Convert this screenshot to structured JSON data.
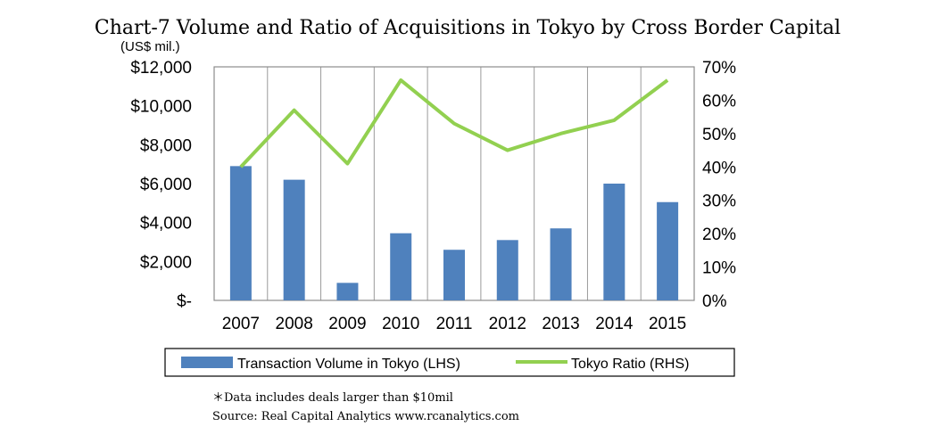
{
  "chart_data": {
    "type": "bar",
    "title": "Chart-7 Volume and Ratio of Acquisitions in Tokyo by Cross Border Capital",
    "y_unit_label": "(US$ mil.)",
    "categories": [
      "2007",
      "2008",
      "2009",
      "2010",
      "2011",
      "2012",
      "2013",
      "2014",
      "2015"
    ],
    "series": [
      {
        "name": "Transaction Volume in Tokyo (LHS)",
        "type": "bar",
        "axis": "left",
        "color": "#4f81bd",
        "values": [
          6900,
          6200,
          900,
          3450,
          2600,
          3100,
          3700,
          6000,
          5050
        ]
      },
      {
        "name": "Tokyo Ratio (RHS)",
        "type": "line",
        "axis": "right",
        "color": "#92d050",
        "values": [
          40,
          57,
          41,
          66,
          53,
          45,
          50,
          54,
          66
        ]
      }
    ],
    "left_axis": {
      "ylim": [
        0,
        12000
      ],
      "ticks": [
        0,
        2000,
        4000,
        6000,
        8000,
        10000,
        12000
      ],
      "tick_labels": [
        "$-",
        "$2,000",
        "$4,000",
        "$6,000",
        "$8,000",
        "$10,000",
        "$12,000"
      ]
    },
    "right_axis": {
      "ylim": [
        0,
        70
      ],
      "ticks": [
        0,
        10,
        20,
        30,
        40,
        50,
        60,
        70
      ],
      "tick_labels": [
        "0%",
        "10%",
        "20%",
        "30%",
        "40%",
        "50%",
        "60%",
        "70%"
      ]
    },
    "grid": "vertical",
    "legend_position": "bottom"
  },
  "footnotes": {
    "note": "＊Data includes deals larger than $10mil",
    "source": "Source: Real Capital Analytics www.rcanalytics.com"
  }
}
